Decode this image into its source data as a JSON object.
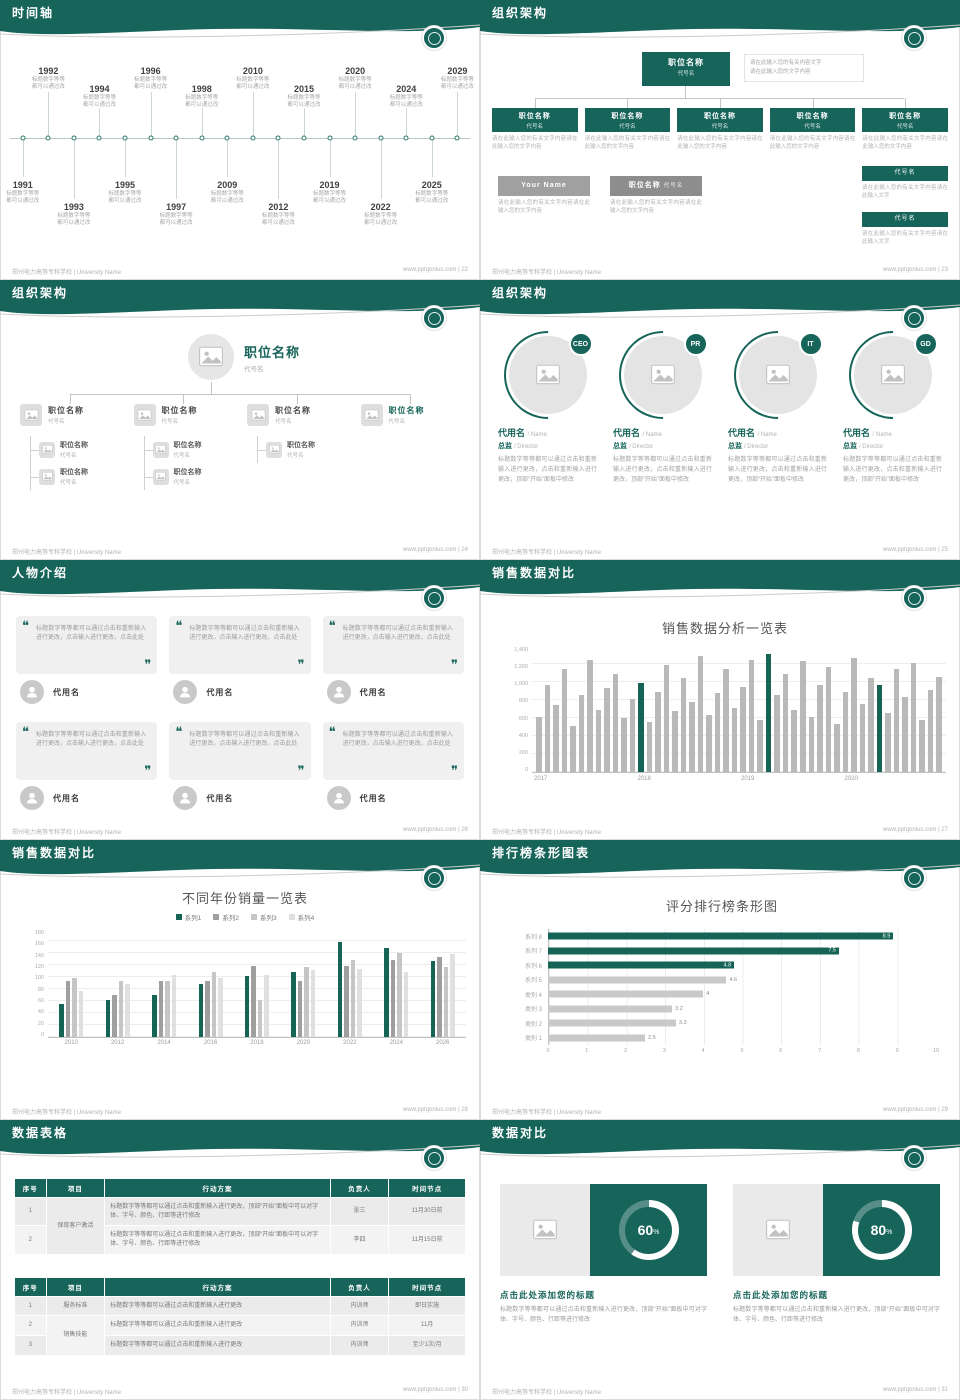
{
  "page": {
    "bg": "#d6d6d6",
    "teal": "#16645a",
    "footer_school": "郑州电力高等专科学校 | University Name",
    "footer_site": "www.pptgonius.com",
    "footer_sep": " | "
  },
  "icons": {
    "open_quote": "❝",
    "close_quote": "❞"
  },
  "labels": {
    "percent_sign": "%"
  },
  "slides": {
    "timeline": {
      "title": "时间轴",
      "page_no": "22",
      "items": [
        {
          "year": "1991",
          "pos": "b1",
          "caption": "标题数字等等都可以通过改"
        },
        {
          "year": "1992",
          "pos": "t1",
          "caption": "标题数字等等都可以通过改"
        },
        {
          "year": "1993",
          "pos": "b2",
          "caption": "标题数字等等都可以通过改"
        },
        {
          "year": "1994",
          "pos": "t2",
          "caption": "标题数字等等都可以通过改"
        },
        {
          "year": "1995",
          "pos": "b1",
          "caption": "标题数字等等都可以通过改"
        },
        {
          "year": "1996",
          "pos": "t1",
          "caption": "标题数字等等都可以通过改"
        },
        {
          "year": "1997",
          "pos": "b2",
          "caption": "标题数字等等都可以通过改"
        },
        {
          "year": "1998",
          "pos": "t2",
          "caption": "标题数字等等都可以通过改"
        },
        {
          "year": "2009",
          "pos": "b1",
          "caption": "标题数字等等都可以通过改"
        },
        {
          "year": "2010",
          "pos": "t1",
          "caption": "标题数字等等都可以通过改"
        },
        {
          "year": "2012",
          "pos": "b2",
          "caption": "标题数字等等都可以通过改"
        },
        {
          "year": "2015",
          "pos": "t2",
          "caption": "标题数字等等都可以通过改"
        },
        {
          "year": "2019",
          "pos": "b1",
          "caption": "标题数字等等都可以通过改"
        },
        {
          "year": "2020",
          "pos": "t1",
          "caption": "标题数字等等都可以通过改"
        },
        {
          "year": "2022",
          "pos": "b2",
          "caption": "标题数字等等都可以通过改"
        },
        {
          "year": "2024",
          "pos": "t2",
          "caption": "标题数字等等都可以通过改"
        },
        {
          "year": "2025",
          "pos": "b1",
          "caption": "标题数字等等都可以通过改"
        },
        {
          "year": "2029",
          "pos": "t1",
          "caption": "标题数字等等都可以通过改"
        }
      ]
    },
    "orgA": {
      "title": "组织架构",
      "page_no": "23",
      "root": {
        "name": "职位名称",
        "sub": "代号名"
      },
      "root_note1": "请在此输入您的有关内容文字",
      "root_note2": "请在此输入您的文字内容",
      "level2": [
        {
          "name": "职位名称",
          "sub": "代号名",
          "note": "请在此输入您的有关文字内容请在此输入您的文字内容"
        },
        {
          "name": "职位名称",
          "sub": "代号名",
          "note": "请在此输入您的有关文字内容请在此输入您的文字内容"
        },
        {
          "name": "职位名称",
          "sub": "代号名",
          "note": "请在此输入您的有关文字内容请在此输入您的文字内容"
        },
        {
          "name": "职位名称",
          "sub": "代号名",
          "note": "请在此输入您的有关文字内容请在此输入您的文字内容"
        },
        {
          "name": "职位名称",
          "sub": "代号名",
          "note": "请在此输入您的有关文字内容请在此输入您的文字内容"
        }
      ],
      "side1": {
        "name": "代号名",
        "note": "请在此输入您的有关文字内容请在此输入文字"
      },
      "side2": {
        "name": "代号名",
        "note": "请在此输入您的有关文字内容请在此输入文字"
      },
      "bottom": [
        {
          "name": "Your Name",
          "note": "请在此输入您的有关文字内容请在此输入您的文字内容"
        },
        {
          "name": "职位名称",
          "sub": "代号名",
          "note": "请在此输入您的有关文字内容请在此输入您的文字内容"
        }
      ]
    },
    "orgB": {
      "title": "组织架构",
      "page_no": "24",
      "root": {
        "name": "职位名称",
        "sub": "代号名"
      },
      "cols": [
        {
          "name": "职位名称",
          "sub": "代号名",
          "subs": [
            {
              "name": "职位名称",
              "sub": "代号名"
            },
            {
              "name": "职位名称",
              "sub": "代号名"
            }
          ]
        },
        {
          "name": "职位名称",
          "sub": "代号名",
          "subs": [
            {
              "name": "职位名称",
              "sub": "代号名"
            },
            {
              "name": "职位名称",
              "sub": "代号名"
            }
          ]
        },
        {
          "name": "职位名称",
          "sub": "代号名",
          "subs": [
            {
              "name": "职位名称",
              "sub": "代号名"
            }
          ]
        },
        {
          "name": "职位名称",
          "sub": "代号名",
          "accent": "1",
          "subs": []
        }
      ]
    },
    "persons": {
      "title": "组织架构",
      "page_no": "25",
      "cards": [
        {
          "badge": "CEO",
          "name": "代用名",
          "name_suffix": "/ Name",
          "role": "总监",
          "role_suffix": "/ Director",
          "desc": "标题数字等等都可以通过点击和重新输入进行更改，点击和重新输入进行更改，顶部“开始”面板中修改"
        },
        {
          "badge": "PR",
          "name": "代用名",
          "name_suffix": "/ Name",
          "role": "总监",
          "role_suffix": "/ Director",
          "desc": "标题数字等等都可以通过点击和重新输入进行更改，点击和重新输入进行更改，顶部“开始”面板中修改"
        },
        {
          "badge": "IT",
          "name": "代用名",
          "name_suffix": "/ Name",
          "role": "总监",
          "role_suffix": "/ Director",
          "desc": "标题数字等等都可以通过点击和重新输入进行更改，点击和重新输入进行更改，顶部“开始”面板中修改"
        },
        {
          "badge": "GD",
          "name": "代用名",
          "name_suffix": "/ Name",
          "role": "总监",
          "role_suffix": "/ Director",
          "desc": "标题数字等等都可以通过点击和重新输入进行更改，点击和重新输入进行更改，顶部“开始”面板中修改"
        }
      ]
    },
    "quotes": {
      "title": "人物介绍",
      "page_no": "26",
      "cards": [
        {
          "text": "标题数字等等都可以通过点击和重新输入进行更改，点击输入进行更改，点击此处",
          "name": "代用名"
        },
        {
          "text": "标题数字等等都可以通过点击和重新输入进行更改，点击输入进行更改，点击此处",
          "name": "代用名"
        },
        {
          "text": "标题数字等等都可以通过点击和重新输入进行更改，点击输入进行更改，点击此处",
          "name": "代用名"
        },
        {
          "text": "标题数字等等都可以通过点击和重新输入进行更改，点击输入进行更改，点击此处",
          "name": "代用名"
        },
        {
          "text": "标题数字等等都可以通过点击和重新输入进行更改，点击输入进行更改，点击此处",
          "name": "代用名"
        },
        {
          "text": "标题数字等等都可以通过点击和重新输入进行更改，点击输入进行更改，点击此处",
          "name": "代用名"
        }
      ]
    },
    "salesA": {
      "title": "销售数据对比",
      "page_no": "27"
    },
    "salesB": {
      "title": "销售数据对比",
      "page_no": "28"
    },
    "ranking": {
      "title": "排行榜条形图表",
      "page_no": "29"
    },
    "tables": {
      "title": "数据表格",
      "page_no": "30",
      "table1": {
        "headers": [
          "序号",
          "项目",
          "行动方案",
          "负责人",
          "时间节点"
        ],
        "project": "保育客户激活",
        "rows": [
          {
            "no": "1",
            "plan": "标题数字等等都可以通过点击和重新输入进行更改，顶部“开始”面板中可以对字体、字号、颜色、行距等进行修改",
            "owner": "张三",
            "time": "11月30日前"
          },
          {
            "no": "2",
            "plan": "标题数字等等都可以通过点击和重新输入进行更改，顶部“开始”面板中可以对字体、字号、颜色、行距等进行修改",
            "owner": "李四",
            "time": "11月15日前"
          }
        ]
      },
      "table2": {
        "headers": [
          "序号",
          "项目",
          "行动方案",
          "负责人",
          "时间节点"
        ],
        "project_row1": "服务标准",
        "project_row23": "销售技能",
        "rows": [
          {
            "no": "1",
            "plan": "标题数字等等都可以通过点击和重新输入进行更改",
            "owner": "内训师",
            "time": "即日实施"
          },
          {
            "no": "2",
            "plan": "标题数字等等都可以通过点击和重新输入进行更改",
            "owner": "内训师",
            "time": "11月"
          },
          {
            "no": "3",
            "plan": "标题数字等等都可以通过点击和重新输入进行更改",
            "owner": "内训师",
            "time": "至少1次/月"
          }
        ]
      }
    },
    "compare": {
      "title": "数据对比",
      "page_no": "31",
      "cards": [
        {
          "percent": "60",
          "heading": "点击此处添加您的标题",
          "desc": "标题数字等等都可以通过点击和重新输入进行更改，顶部“开始”面板中可对字体、字号、颜色、行距等进行修改"
        },
        {
          "percent": "80",
          "heading": "点击此处添加您的标题",
          "desc": "标题数字等等都可以通过点击和重新输入进行更改，顶部“开始”面板中可对字体、字号、颜色、行距等进行修改"
        }
      ]
    }
  },
  "chart_data": [
    {
      "type": "bar",
      "title": "销售数据分析一览表",
      "categories": [
        "2017",
        "2018",
        "2019",
        "2020"
      ],
      "values": [
        620,
        980,
        750,
        1150,
        520,
        860,
        1250,
        700,
        940,
        1100,
        600,
        820,
        1000,
        560,
        900,
        1200,
        680,
        1050,
        780,
        1300,
        640,
        880,
        1150,
        720,
        950,
        1250,
        580,
        1320,
        860,
        1100,
        700,
        1240,
        620,
        980,
        1180,
        540,
        900,
        1280,
        760,
        1050,
        980,
        660,
        1150,
        840,
        1220,
        580,
        920,
        1060
      ],
      "highlight_indices": [
        12,
        27,
        40
      ],
      "yticks": [
        "0",
        "200",
        "400",
        "600",
        "800",
        "1,000",
        "1,200",
        "1,400"
      ],
      "ylim": [
        0,
        1400
      ],
      "bar_color": "#b9b9b9",
      "highlight_color": "#156456",
      "grid": true,
      "legend": "none"
    },
    {
      "type": "bar",
      "title": "不同年份销量一览表",
      "categories": [
        "2010",
        "2012",
        "2014",
        "2016",
        "2018",
        "2020",
        "2022",
        "2024",
        "2026"
      ],
      "series": [
        {
          "name": "系列1",
          "color": "#156456",
          "values": [
            55,
            62,
            70,
            90,
            102,
            110,
            160,
            150,
            128
          ]
        },
        {
          "name": "系列2",
          "color": "#9f9f9f",
          "values": [
            95,
            70,
            95,
            95,
            120,
            95,
            120,
            130,
            135
          ]
        },
        {
          "name": "系列3",
          "color": "#c6c6c6",
          "values": [
            100,
            95,
            95,
            110,
            62,
            118,
            130,
            142,
            118
          ]
        },
        {
          "name": "系列4",
          "color": "#e0e0e0",
          "values": [
            78,
            90,
            105,
            100,
            105,
            112,
            115,
            110,
            140
          ]
        }
      ],
      "yticks": [
        "0",
        "20",
        "40",
        "60",
        "80",
        "100",
        "120",
        "140",
        "160",
        "180"
      ],
      "ylim": [
        0,
        180
      ],
      "grid": true,
      "legend": "top"
    },
    {
      "type": "bar",
      "orientation": "horizontal",
      "title": "评分排行榜条形图",
      "categories": [
        "系列 8",
        "系列 7",
        "系列 6",
        "系列 5",
        "类别 4",
        "类别 3",
        "类别 2",
        "类别 1"
      ],
      "values": [
        8.9,
        7.5,
        4.8,
        4.6,
        4,
        3.2,
        3.3,
        2.5
      ],
      "highlight_count": 3,
      "xticks": [
        "0",
        "1",
        "2",
        "3",
        "4",
        "5",
        "6",
        "7",
        "8",
        "9",
        "10"
      ],
      "xlim": [
        0,
        10
      ],
      "bar_color": "#c9c9c9",
      "highlight_color": "#156456",
      "grid": true,
      "legend": "none"
    }
  ]
}
